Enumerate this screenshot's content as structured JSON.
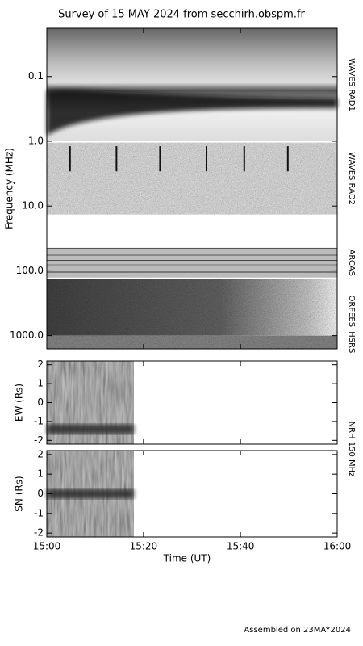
{
  "title": "Survey of 15 MAY 2024 from secchirh.obspm.fr",
  "footer": "Assembled on 23MAY2024",
  "side_label": "NRH 150 MHz",
  "time_axis": {
    "xlabel": "Time (UT)",
    "xlim": [
      15,
      16
    ],
    "xticks": [
      {
        "value": 15,
        "label": "15:00"
      },
      {
        "value": 15.333,
        "label": "15:20"
      },
      {
        "value": 15.667,
        "label": "15:40"
      },
      {
        "value": 16,
        "label": "16:00"
      }
    ]
  },
  "chart_data": [
    {
      "type": "spectrogram",
      "ylabel": "Frequency (MHz)",
      "log_y": true,
      "y_inverted": true,
      "ylim": [
        0.018,
        1600
      ],
      "yticks": [
        0.1,
        {
          "value": 1,
          "label": "1.0"
        },
        {
          "value": 10,
          "label": "10.0"
        },
        {
          "value": 100,
          "label": "100.0"
        },
        {
          "value": 1000,
          "label": "1000.0"
        }
      ],
      "bands": [
        {
          "name": "WAVES RAD1",
          "range": [
            0.018,
            1
          ]
        },
        {
          "name": "WAVES RAD2",
          "range": [
            1.05,
            13.5
          ]
        },
        {
          "name": "ARCAS",
          "range": [
            44,
            127
          ]
        },
        {
          "name": "ORFEES",
          "range": [
            135,
            1300
          ]
        },
        {
          "name": "HSRS",
          "range": [
            1000,
            1600
          ]
        }
      ]
    },
    {
      "type": "image",
      "ylabel": "EW (Rs)",
      "ylim": [
        -2.2,
        2.2
      ],
      "yticks": [
        -2,
        -1,
        0,
        1,
        2
      ],
      "data_range": [
        15,
        15.3
      ]
    },
    {
      "type": "image",
      "ylabel": "SN (Rs)",
      "ylim": [
        -2.2,
        2.2
      ],
      "yticks": [
        -2,
        -1,
        0,
        1,
        2
      ],
      "data_range": [
        15,
        15.3
      ]
    }
  ]
}
